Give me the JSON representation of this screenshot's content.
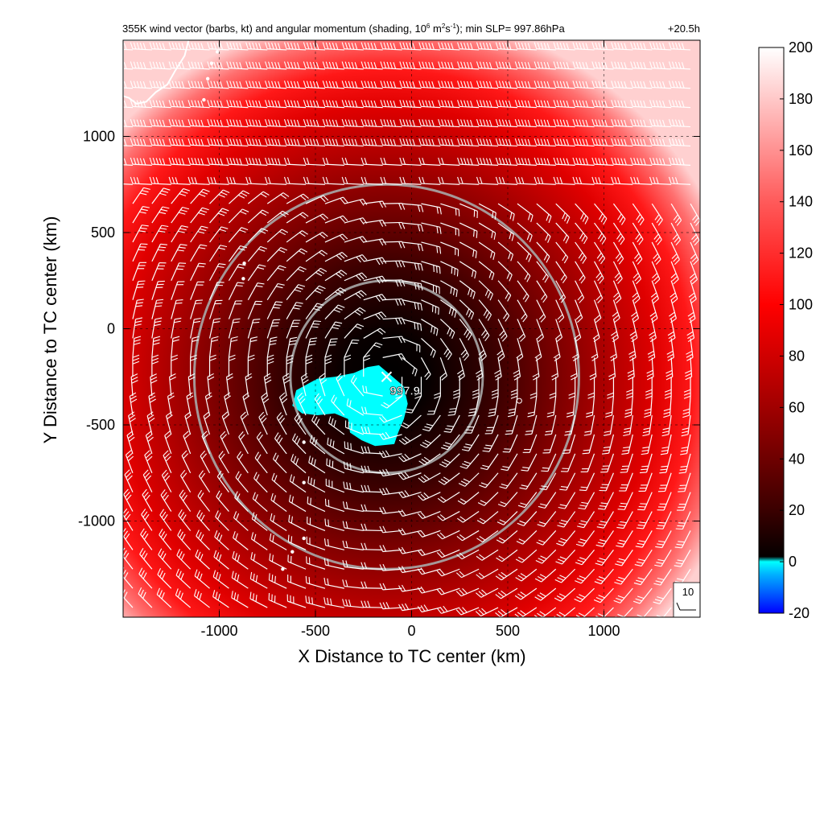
{
  "chart_data": {
    "type": "heatmap",
    "title": "355K wind vector (barbs, kt) and angular momentum (shading, 10",
    "title_exp1": "6",
    "title_mid1": " m",
    "title_exp2": "2",
    "title_mid2": "s",
    "title_exp3": "-1",
    "title_end": "); min SLP= 997.86hPa",
    "time_label": "+20.5h",
    "xlabel": "X Distance to TC center (km)",
    "ylabel": "Y Distance to TC center (km)",
    "xlim": [
      -1500,
      1500
    ],
    "ylim": [
      -1500,
      1500
    ],
    "xticks": [
      -1000,
      -500,
      0,
      500,
      1000
    ],
    "xtick_labels": [
      "-1000",
      "-500",
      "0",
      "500",
      "1000"
    ],
    "yticks": [
      -1000,
      -500,
      0,
      500,
      1000
    ],
    "ytick_labels": [
      "-1000",
      "-500",
      "0",
      "500",
      "1000"
    ],
    "grid": true,
    "colorbar": {
      "min": -20,
      "max": 200,
      "ticks": [
        -20,
        0,
        20,
        40,
        60,
        80,
        100,
        120,
        140,
        160,
        180,
        200
      ],
      "tick_labels": [
        "-20",
        "0",
        "20",
        "40",
        "60",
        "80",
        "100",
        "120",
        "140",
        "160",
        "180",
        "200"
      ],
      "colors": {
        "-20": "#0000ff",
        "-5": "#00b0ff",
        "0": "#00ffff",
        "2": "#050000",
        "20": "#3a0000",
        "40": "#6e0000",
        "60": "#a00000",
        "80": "#d00000",
        "100": "#ff0000",
        "140": "#ff5a5a",
        "200": "#ffffff"
      }
    },
    "center": {
      "x": -130,
      "y": -250
    },
    "min_slp_marker": {
      "x": -130,
      "y": -250,
      "label": "997.9"
    },
    "rings_km": [
      500,
      1000
    ],
    "barb_reference": {
      "label": "10",
      "speed_kt": 10
    },
    "barb_spacing_km": 100,
    "land_color": "#ffffff"
  }
}
